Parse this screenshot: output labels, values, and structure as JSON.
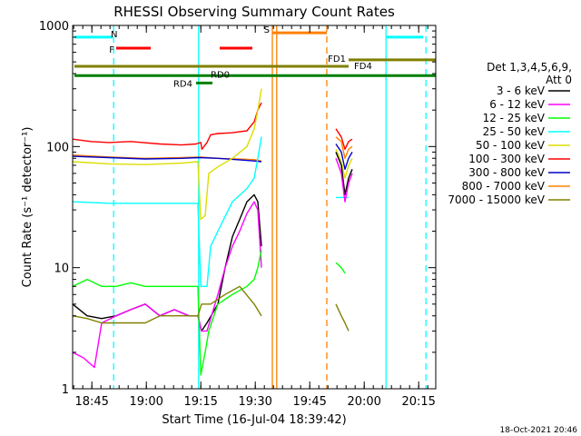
{
  "chart_data": {
    "type": "line",
    "title": "RHESSI Observing Summary Count Rates",
    "xlabel": "Start Time (16-Jul-04 18:39:42)",
    "ylabel": "Count Rate (s⁻¹ detector⁻¹)",
    "x_unit": "minutes since 18:39:42",
    "xlim": [
      0,
      100
    ],
    "ylim": [
      1,
      1000
    ],
    "yscale": "log",
    "xticks": [
      {
        "value": 5.3,
        "label": "18:45"
      },
      {
        "value": 20.3,
        "label": "19:00"
      },
      {
        "value": 35.3,
        "label": "19:15"
      },
      {
        "value": 50.3,
        "label": "19:30"
      },
      {
        "value": 65.3,
        "label": "19:45"
      },
      {
        "value": 80.3,
        "label": "20:00"
      },
      {
        "value": 95.3,
        "label": "20:15"
      }
    ],
    "yticks": [
      {
        "value": 1,
        "label": "1"
      },
      {
        "value": 10,
        "label": "10"
      },
      {
        "value": 100,
        "label": "100"
      },
      {
        "value": 1000,
        "label": "1000"
      }
    ],
    "legend": {
      "header": [
        "Det 1,3,4,5,6,9,",
        "Att 0"
      ],
      "placement": "right",
      "entries": [
        {
          "label": "3 - 6 keV",
          "color": "#000000"
        },
        {
          "label": "6 - 12 keV",
          "color": "#ff00ff"
        },
        {
          "label": "12 - 25 keV",
          "color": "#00ff00"
        },
        {
          "label": "25 - 50 keV",
          "color": "#00ffff"
        },
        {
          "label": "50 - 100 keV",
          "color": "#dddd00"
        },
        {
          "label": "100 - 300 keV",
          "color": "#ff0000"
        },
        {
          "label": "300 - 800 keV",
          "color": "#0000cc"
        },
        {
          "label": "800 - 7000 keV",
          "color": "#ff8000"
        },
        {
          "label": "7000 - 15000 keV",
          "color": "#808000"
        }
      ]
    },
    "bars": [
      {
        "label": "N",
        "color": "#00ffff",
        "y": 800,
        "x": [
          0.5,
          11
        ]
      },
      {
        "label": "",
        "color": "#00ffff",
        "y": 800,
        "x": [
          86.5,
          96.5
        ]
      },
      {
        "label": "F",
        "color": "#ff0000",
        "y": 650,
        "x": [
          12,
          21.5
        ]
      },
      {
        "label": "",
        "color": "#ff0000",
        "y": 650,
        "x": [
          40.5,
          49.5
        ]
      },
      {
        "label": "S",
        "color": "#ff8000",
        "y": 870,
        "x": [
          55,
          70
        ]
      },
      {
        "label": "FD1",
        "color": "#808000",
        "y": 520,
        "x": [
          76,
          100
        ]
      },
      {
        "label": "FD4",
        "color": "#808000",
        "y": 460,
        "x": [
          0.5,
          76
        ]
      },
      {
        "label": "RD0",
        "color": "#008000",
        "y": 385,
        "x": [
          0.5,
          100
        ]
      },
      {
        "label": "RD4",
        "color": "#008000",
        "y": 335,
        "x": [
          34,
          38.5
        ]
      }
    ],
    "vlines": [
      {
        "x": 11.3,
        "color": "#00ffff",
        "style": "dashed"
      },
      {
        "x": 34.7,
        "color": "#00ffff",
        "style": "solid"
      },
      {
        "x": 55.0,
        "color": "#ff8000",
        "style": "solid"
      },
      {
        "x": 56.2,
        "color": "#ff8000",
        "style": "solid"
      },
      {
        "x": 70.0,
        "color": "#ff8000",
        "style": "dashed"
      },
      {
        "x": 86.3,
        "color": "#00ffff",
        "style": "solid"
      },
      {
        "x": 97.3,
        "color": "#00ffff",
        "style": "dashed"
      }
    ],
    "series": [
      {
        "name": "100 - 300 keV",
        "color": "#ff0000",
        "segments": [
          [
            [
              0,
              115
            ],
            [
              5,
              110
            ],
            [
              10,
              108
            ],
            [
              16,
              110
            ],
            [
              24,
              105
            ],
            [
              30,
              103
            ],
            [
              34,
              105
            ],
            [
              35.3,
              108
            ],
            [
              35.6,
              95
            ],
            [
              37,
              108
            ],
            [
              38,
              125
            ],
            [
              40,
              128
            ],
            [
              44,
              130
            ],
            [
              48,
              135
            ],
            [
              50,
              160
            ],
            [
              51,
              200
            ],
            [
              52,
              230
            ]
          ],
          [
            [
              72.5,
              140
            ],
            [
              74,
              120
            ],
            [
              75,
              95
            ],
            [
              76,
              110
            ],
            [
              77,
              115
            ]
          ]
        ]
      },
      {
        "name": "800 - 7000 keV",
        "color": "#ff8000",
        "segments": [
          [
            [
              0,
              85
            ],
            [
              10,
              82
            ],
            [
              20,
              80
            ],
            [
              30,
              81
            ],
            [
              35,
              82
            ],
            [
              40,
              80
            ],
            [
              45,
              79
            ],
            [
              50,
              78
            ],
            [
              52,
              76
            ]
          ],
          [
            [
              72.5,
              120
            ],
            [
              74,
              110
            ],
            [
              75,
              80
            ],
            [
              76,
              95
            ],
            [
              77,
              100
            ]
          ]
        ]
      },
      {
        "name": "300 - 800 keV",
        "color": "#0000cc",
        "segments": [
          [
            [
              0,
              83
            ],
            [
              10,
              81
            ],
            [
              20,
              79
            ],
            [
              30,
              80
            ],
            [
              35,
              81
            ],
            [
              40,
              80
            ],
            [
              45,
              78
            ],
            [
              50,
              76
            ],
            [
              52,
              75
            ]
          ],
          [
            [
              72.5,
              105
            ],
            [
              74,
              90
            ],
            [
              75,
              65
            ],
            [
              76,
              80
            ],
            [
              77,
              90
            ]
          ]
        ]
      },
      {
        "name": "50 - 100 keV",
        "color": "#dddd00",
        "segments": [
          [
            [
              0,
              75
            ],
            [
              10,
              72
            ],
            [
              20,
              71
            ],
            [
              30,
              73
            ],
            [
              34.5,
              75
            ],
            [
              35.3,
              25
            ],
            [
              36.5,
              27
            ],
            [
              37.5,
              60
            ],
            [
              40,
              68
            ],
            [
              44,
              80
            ],
            [
              48,
              100
            ],
            [
              50,
              140
            ],
            [
              51,
              200
            ],
            [
              52,
              300
            ]
          ],
          [
            [
              72.5,
              95
            ],
            [
              74,
              75
            ],
            [
              75,
              55
            ],
            [
              76,
              70
            ],
            [
              77,
              80
            ]
          ]
        ]
      },
      {
        "name": "25 - 50 keV",
        "color": "#00ffff",
        "segments": [
          [
            [
              0,
              35
            ],
            [
              10,
              34
            ],
            [
              20,
              34
            ],
            [
              30,
              34
            ],
            [
              34.5,
              34
            ],
            [
              35.3,
              7
            ],
            [
              37,
              7
            ],
            [
              38,
              15
            ],
            [
              40,
              20
            ],
            [
              44,
              35
            ],
            [
              48,
              45
            ],
            [
              50,
              55
            ],
            [
              51,
              80
            ],
            [
              52,
              120
            ]
          ],
          [
            [
              72.5,
              38
            ],
            [
              75,
              38
            ],
            [
              76,
              38
            ]
          ]
        ]
      },
      {
        "name": "3 - 6 keV",
        "color": "#000000",
        "segments": [
          [
            [
              0,
              5
            ],
            [
              4,
              4
            ],
            [
              8,
              3.8
            ],
            [
              12,
              4
            ],
            [
              16,
              4.5
            ],
            [
              20,
              5
            ],
            [
              24,
              4
            ],
            [
              28,
              4.5
            ],
            [
              32,
              4
            ],
            [
              34.5,
              4
            ],
            [
              35.5,
              3
            ],
            [
              37,
              3.5
            ],
            [
              40,
              5
            ],
            [
              42,
              10
            ],
            [
              44,
              18
            ],
            [
              46,
              25
            ],
            [
              48,
              35
            ],
            [
              50,
              40
            ],
            [
              51,
              35
            ],
            [
              52,
              15
            ]
          ],
          [
            [
              72.5,
              90
            ],
            [
              74,
              70
            ],
            [
              75,
              40
            ],
            [
              76,
              55
            ],
            [
              77,
              65
            ]
          ]
        ]
      },
      {
        "name": "6 - 12 keV",
        "color": "#ff00ff",
        "segments": [
          [
            [
              0,
              2
            ],
            [
              3,
              1.8
            ],
            [
              6,
              1.5
            ],
            [
              8,
              3.5
            ],
            [
              12,
              4
            ],
            [
              16,
              4.5
            ],
            [
              20,
              5
            ],
            [
              24,
              4
            ],
            [
              28,
              4.5
            ],
            [
              32,
              4
            ],
            [
              34.5,
              4
            ],
            [
              35.5,
              3
            ],
            [
              37,
              3
            ],
            [
              40,
              6
            ],
            [
              42,
              10
            ],
            [
              44,
              15
            ],
            [
              46,
              20
            ],
            [
              48,
              28
            ],
            [
              50,
              35
            ],
            [
              51,
              30
            ],
            [
              52,
              10
            ]
          ],
          [
            [
              72.5,
              80
            ],
            [
              74,
              60
            ],
            [
              75,
              35
            ],
            [
              76,
              50
            ],
            [
              77,
              60
            ]
          ]
        ]
      },
      {
        "name": "12 - 25 keV",
        "color": "#00ff00",
        "segments": [
          [
            [
              0,
              7
            ],
            [
              4,
              8
            ],
            [
              8,
              7
            ],
            [
              12,
              7
            ],
            [
              16,
              7.5
            ],
            [
              20,
              7
            ],
            [
              24,
              7
            ],
            [
              28,
              7
            ],
            [
              32,
              7
            ],
            [
              34.5,
              7
            ],
            [
              35.3,
              1.3
            ],
            [
              36.5,
              2
            ],
            [
              37.5,
              3
            ],
            [
              40,
              5
            ],
            [
              44,
              6
            ],
            [
              48,
              7
            ],
            [
              50,
              8
            ],
            [
              51,
              10
            ],
            [
              52,
              14
            ]
          ],
          [
            [
              72.5,
              11
            ],
            [
              74,
              10
            ],
            [
              75,
              9
            ]
          ]
        ]
      },
      {
        "name": "7000 - 15000 keV",
        "color": "#808000",
        "segments": [
          [
            [
              0,
              4
            ],
            [
              4,
              3.8
            ],
            [
              8,
              3.5
            ],
            [
              12,
              3.5
            ],
            [
              16,
              3.5
            ],
            [
              20,
              3.5
            ],
            [
              24,
              4
            ],
            [
              28,
              4
            ],
            [
              32,
              4
            ],
            [
              34.5,
              4
            ],
            [
              35.5,
              5
            ],
            [
              38,
              5
            ],
            [
              42,
              6
            ],
            [
              46,
              7
            ],
            [
              50,
              5
            ],
            [
              52,
              4
            ]
          ],
          [
            [
              72.5,
              5
            ],
            [
              74,
              4
            ],
            [
              75,
              3.5
            ],
            [
              76,
              3
            ]
          ]
        ]
      }
    ]
  },
  "footer": {
    "timestamp": "18-Oct-2021 20:46"
  }
}
